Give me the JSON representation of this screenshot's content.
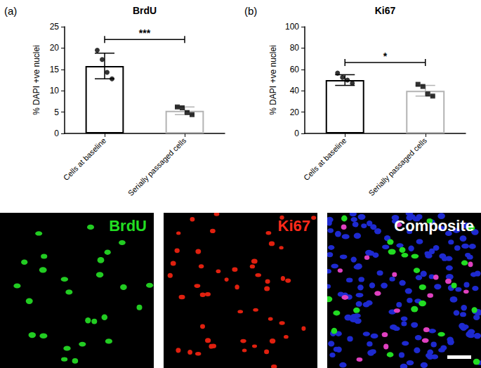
{
  "chart_data": [
    {
      "type": "bar",
      "panel_label": "(a)",
      "title": "BrdU",
      "y_label": "% DAPI +ve nuclei",
      "categories": [
        "Cells at baseline",
        "Serially passaged cells"
      ],
      "significance": "***",
      "ylim": [
        0,
        25
      ],
      "yticks": [
        0,
        5,
        10,
        15,
        20,
        25
      ],
      "grid": false,
      "series": [
        {
          "type": "bar",
          "values": [
            15.8,
            5.3
          ],
          "error": [
            3.0,
            0.9
          ],
          "colors": [
            "#000000",
            "#b3b3b3"
          ]
        },
        {
          "type": "scatter",
          "marker": "circle",
          "color": "#000000",
          "x": [
            "Cells at baseline",
            "Cells at baseline",
            "Cells at baseline",
            "Cells at baseline"
          ],
          "values": [
            19.5,
            17.3,
            14.3,
            12.8
          ]
        },
        {
          "type": "scatter",
          "marker": "square",
          "color": "#000000",
          "x": [
            "Serially passaged cells",
            "Serially passaged cells",
            "Serially passaged cells",
            "Serially passaged cells"
          ],
          "values": [
            6.2,
            6.0,
            4.9,
            4.4
          ]
        }
      ]
    },
    {
      "type": "bar",
      "panel_label": "(b)",
      "title": "Ki67",
      "y_label": "% DAPI +ve nuclei",
      "categories": [
        "Cells at baseline",
        "Serially passaged cells"
      ],
      "significance": "*",
      "ylim": [
        0,
        100
      ],
      "yticks": [
        0,
        20,
        40,
        60,
        80,
        100
      ],
      "grid": false,
      "series": [
        {
          "type": "bar",
          "values": [
            50,
            40
          ],
          "error": [
            5,
            5
          ],
          "colors": [
            "#000000",
            "#b3b3b3"
          ]
        },
        {
          "type": "scatter",
          "marker": "circle",
          "color": "#000000",
          "x": [
            "Cells at baseline",
            "Cells at baseline",
            "Cells at baseline",
            "Cells at baseline"
          ],
          "values": [
            56.5,
            52.5,
            50,
            47
          ]
        },
        {
          "type": "scatter",
          "marker": "square",
          "color": "#000000",
          "x": [
            "Serially passaged cells",
            "Serially passaged cells",
            "Serially passaged cells",
            "Serially passaged cells"
          ],
          "values": [
            46,
            44,
            37,
            35
          ]
        }
      ]
    }
  ],
  "image_panels": [
    {
      "label": "BrdU",
      "color": "#22dd22"
    },
    {
      "label": "Ki67",
      "color": "#ff2a1a"
    },
    {
      "label": "Composite",
      "color": "#ffffff"
    }
  ]
}
